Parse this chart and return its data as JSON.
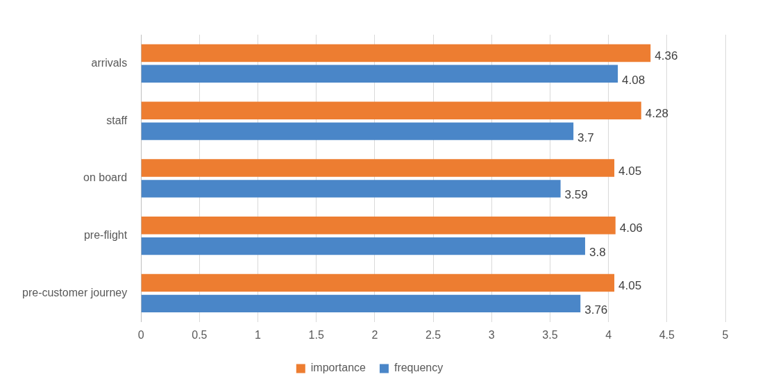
{
  "chart_data": {
    "type": "bar",
    "orientation": "horizontal",
    "categories": [
      "arrivals",
      "staff",
      "on board",
      "pre-flight",
      "pre-customer journey"
    ],
    "series": [
      {
        "name": "importance",
        "color": "#ed7d31",
        "values": [
          4.36,
          4.28,
          4.05,
          4.06,
          4.05
        ]
      },
      {
        "name": "frequency",
        "color": "#4a86c8",
        "values": [
          4.08,
          3.7,
          3.59,
          3.8,
          3.76
        ]
      }
    ],
    "xlim": [
      0,
      5
    ],
    "xticks": [
      0,
      0.5,
      1,
      1.5,
      2,
      2.5,
      3,
      3.5,
      4,
      4.5,
      5
    ],
    "grid": "x",
    "legend": "bottom",
    "data_labels": true
  }
}
